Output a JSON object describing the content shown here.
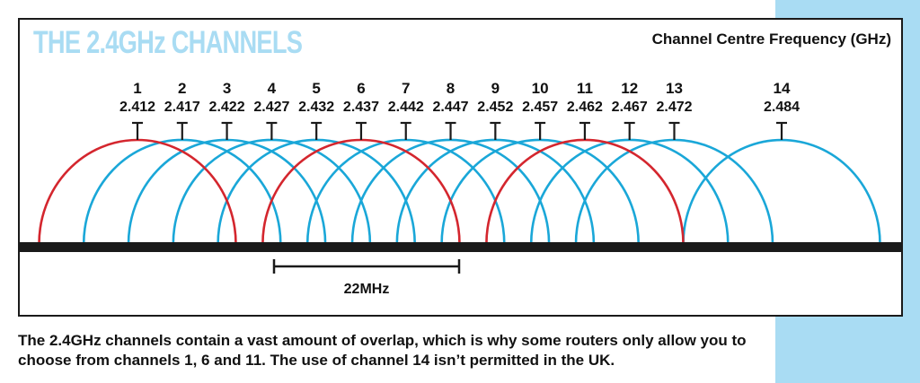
{
  "title": "THE 2.4GHz CHANNELS",
  "frequency_label": "Channel Centre Frequency (GHz)",
  "channels": [
    {
      "number": "1",
      "frequency": "2.412",
      "highlight": true
    },
    {
      "number": "2",
      "frequency": "2.417",
      "highlight": false
    },
    {
      "number": "3",
      "frequency": "2.422",
      "highlight": false
    },
    {
      "number": "4",
      "frequency": "2.427",
      "highlight": false
    },
    {
      "number": "5",
      "frequency": "2.432",
      "highlight": false
    },
    {
      "number": "6",
      "frequency": "2.437",
      "highlight": true
    },
    {
      "number": "7",
      "frequency": "2.442",
      "highlight": false
    },
    {
      "number": "8",
      "frequency": "2.447",
      "highlight": false
    },
    {
      "number": "9",
      "frequency": "2.452",
      "highlight": false
    },
    {
      "number": "10",
      "frequency": "2.457",
      "highlight": false
    },
    {
      "number": "11",
      "frequency": "2.462",
      "highlight": true
    },
    {
      "number": "12",
      "frequency": "2.467",
      "highlight": false
    },
    {
      "number": "13",
      "frequency": "2.472",
      "highlight": false
    },
    {
      "number": "14",
      "frequency": "2.484",
      "highlight": false
    }
  ],
  "bandwidth_label": "22MHz",
  "caption": "The 2.4GHz channels contain a vast amount of overlap, which is why some routers only allow you to choose from channels 1, 6 and 11. The use of channel 14 isn’t permitted in the UK.",
  "colors": {
    "highlight": "#d4262e",
    "normal": "#1aa7d8",
    "title": "#a9dcf3",
    "panel": "#a9dcf3",
    "axis": "#1a1a1a"
  }
}
